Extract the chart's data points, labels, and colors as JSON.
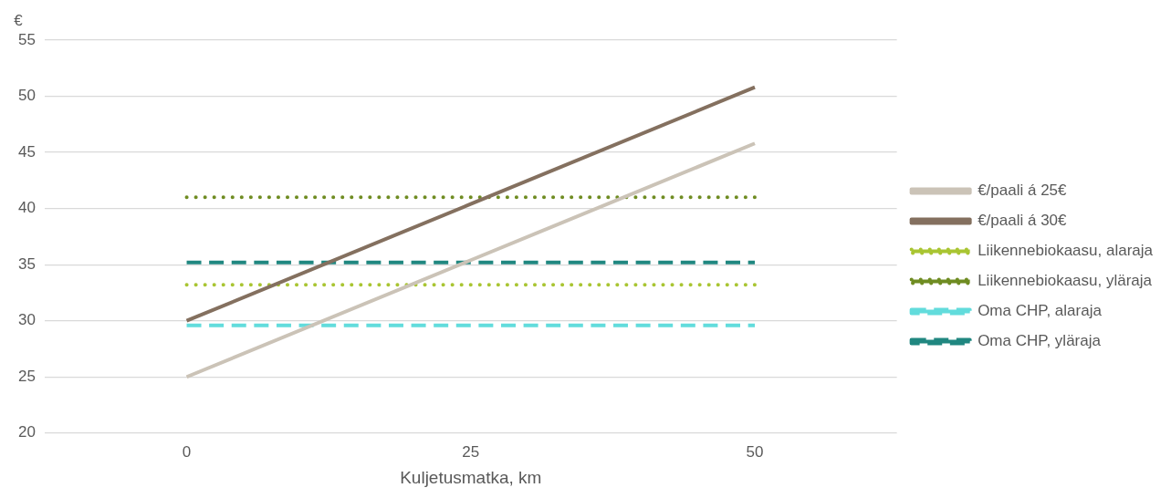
{
  "chart_data": {
    "type": "line",
    "xlabel": "Kuljetusmatka, km",
    "ylabel": "€",
    "categories": [
      "0",
      "25",
      "50"
    ],
    "ylim": [
      20,
      55
    ],
    "yticks": [
      20,
      25,
      30,
      35,
      40,
      45,
      50,
      55
    ],
    "grid": "y",
    "legend": "right",
    "marker": "none",
    "series": [
      {
        "name": "€/paali á 25€",
        "color": "#cbc3b7",
        "values": [
          25,
          35.4,
          45.8
        ],
        "line_style": "solid"
      },
      {
        "name": "€/paali á 30€",
        "color": "#84705f",
        "values": [
          30,
          40.4,
          50.8
        ],
        "line_style": "solid"
      },
      {
        "name": "Liikennebiokaasu, alaraja",
        "color": "#a9c532",
        "values": [
          33.2,
          33.2,
          33.2
        ],
        "line_style": "dotted"
      },
      {
        "name": "Liikennebiokaasu, yläraja",
        "color": "#6f8c22",
        "values": [
          41,
          41,
          41
        ],
        "line_style": "dotted"
      },
      {
        "name": "Oma CHP, alaraja",
        "color": "#62dcdc",
        "values": [
          29.6,
          29.6,
          29.6
        ],
        "line_style": "dashed"
      },
      {
        "name": "Oma CHP, yläraja",
        "color": "#208780",
        "values": [
          35.2,
          35.2,
          35.2
        ],
        "line_style": "dashed"
      }
    ]
  }
}
